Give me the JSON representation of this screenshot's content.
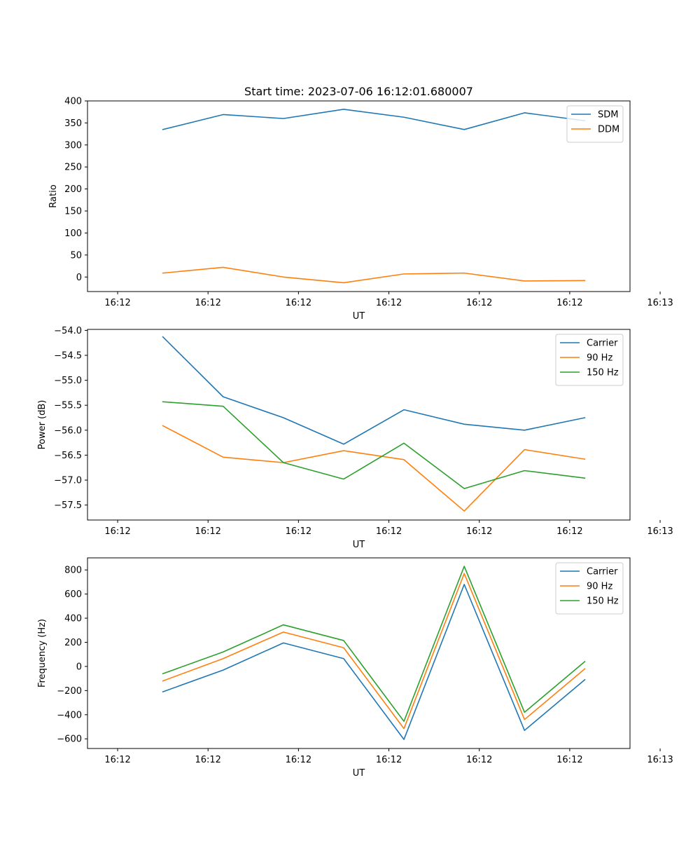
{
  "chart_data": [
    {
      "type": "line",
      "title": "Start time: 2023-07-06 16:12:01.680007",
      "xlabel": "UT",
      "ylabel": "Ratio",
      "xlim": [
        -0.5,
        8.5
      ],
      "ylim": [
        -33,
        400
      ],
      "x_ticks": [
        0,
        1.5,
        3,
        4.5,
        6,
        7.5,
        9
      ],
      "x_tick_labels": [
        "16:12",
        "16:12",
        "16:12",
        "16:12",
        "16:12",
        "16:12",
        "16:13"
      ],
      "y_ticks": [
        0,
        50,
        100,
        150,
        200,
        250,
        300,
        350,
        400
      ],
      "y_tick_labels": [
        "0",
        "50",
        "100",
        "150",
        "200",
        "250",
        "300",
        "350",
        "400"
      ],
      "x": [
        0.75,
        1.75,
        2.75,
        3.75,
        4.75,
        5.75,
        6.75,
        7.75
      ],
      "series": [
        {
          "name": "SDM",
          "color": "#1f77b4",
          "values": [
            335,
            369,
            360,
            381,
            363,
            335,
            373,
            355
          ]
        },
        {
          "name": "DDM",
          "color": "#ff7f0e",
          "values": [
            9,
            22,
            0,
            -13,
            7,
            9,
            -9,
            -8
          ]
        }
      ],
      "legend": "top-right"
    },
    {
      "type": "line",
      "title": "",
      "xlabel": "UT",
      "ylabel": "Power (dB)",
      "xlim": [
        -0.5,
        8.5
      ],
      "ylim": [
        -57.8,
        -53.98
      ],
      "x_ticks": [
        0,
        1.5,
        3,
        4.5,
        6,
        7.5,
        9
      ],
      "x_tick_labels": [
        "16:12",
        "16:12",
        "16:12",
        "16:12",
        "16:12",
        "16:12",
        "16:13"
      ],
      "y_ticks": [
        -57.5,
        -57.0,
        -56.5,
        -56.0,
        -55.5,
        -55.0,
        -54.5,
        -54.0
      ],
      "y_tick_labels": [
        "−57.5",
        "−57.0",
        "−56.5",
        "−56.0",
        "−55.5",
        "−55.0",
        "−54.5",
        "−54.0"
      ],
      "x": [
        0.75,
        1.75,
        2.75,
        3.75,
        4.75,
        5.75,
        6.75,
        7.75
      ],
      "series": [
        {
          "name": "Carrier",
          "color": "#1f77b4",
          "values": [
            -54.13,
            -55.33,
            -55.75,
            -56.28,
            -55.59,
            -55.88,
            -56.0,
            -55.75
          ]
        },
        {
          "name": "90 Hz",
          "color": "#ff7f0e",
          "values": [
            -55.91,
            -56.54,
            -56.65,
            -56.41,
            -56.59,
            -57.62,
            -56.39,
            -56.58
          ]
        },
        {
          "name": "150 Hz",
          "color": "#2ca02c",
          "values": [
            -55.43,
            -55.52,
            -56.65,
            -56.98,
            -56.26,
            -57.17,
            -56.81,
            -56.96
          ]
        }
      ],
      "legend": "top-right"
    },
    {
      "type": "line",
      "title": "",
      "xlabel": "UT",
      "ylabel": "Frequency (Hz)",
      "xlim": [
        -0.5,
        8.5
      ],
      "ylim": [
        -680,
        900
      ],
      "x_ticks": [
        0,
        1.5,
        3,
        4.5,
        6,
        7.5,
        9
      ],
      "x_tick_labels": [
        "16:12",
        "16:12",
        "16:12",
        "16:12",
        "16:12",
        "16:12",
        "16:13"
      ],
      "y_ticks": [
        -600,
        -400,
        -200,
        0,
        200,
        400,
        600,
        800
      ],
      "y_tick_labels": [
        "−600",
        "−400",
        "−200",
        "0",
        "200",
        "400",
        "600",
        "800"
      ],
      "x": [
        0.75,
        1.75,
        2.75,
        3.75,
        4.75,
        5.75,
        6.75,
        7.75
      ],
      "series": [
        {
          "name": "Carrier",
          "color": "#1f77b4",
          "values": [
            -210,
            -30,
            195,
            65,
            -605,
            680,
            -530,
            -110
          ]
        },
        {
          "name": "90 Hz",
          "color": "#ff7f0e",
          "values": [
            -120,
            65,
            285,
            155,
            -515,
            770,
            -440,
            -20
          ]
        },
        {
          "name": "150 Hz",
          "color": "#2ca02c",
          "values": [
            -60,
            120,
            345,
            215,
            -455,
            830,
            -380,
            40
          ]
        }
      ],
      "legend": "top-right"
    }
  ]
}
